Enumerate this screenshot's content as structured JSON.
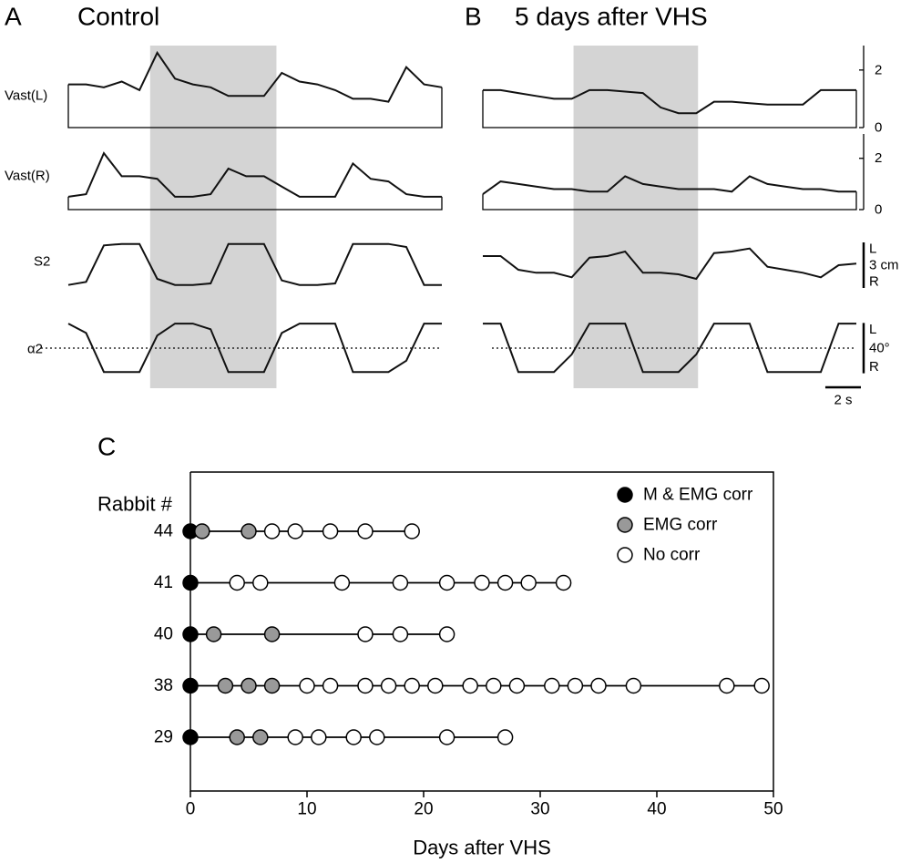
{
  "chart_data": [
    {
      "type": "traces",
      "panel": "A",
      "title": "Control",
      "x": [
        0,
        1,
        2,
        3,
        4,
        5,
        6,
        7,
        8,
        9,
        10,
        11,
        12,
        13,
        14,
        15,
        16,
        17,
        18,
        19,
        20,
        21
      ],
      "xlim": [
        0,
        21
      ],
      "shade": [
        4.6,
        11.7
      ],
      "series": [
        {
          "name": "Vast(L)",
          "color": "#111111",
          "ylim": [
            0,
            2.85
          ],
          "values": [
            1.5,
            1.5,
            1.4,
            1.6,
            1.3,
            2.6,
            1.7,
            1.5,
            1.4,
            1.1,
            1.1,
            1.1,
            1.9,
            1.6,
            1.5,
            1.3,
            1.0,
            1.0,
            0.9,
            2.1,
            1.5,
            1.4
          ]
        },
        {
          "name": "Vast(R)",
          "color": "#111111",
          "ylim": [
            0,
            2.95
          ],
          "values": [
            0.5,
            0.6,
            2.2,
            1.3,
            1.3,
            1.2,
            0.5,
            0.5,
            0.6,
            1.6,
            1.3,
            1.3,
            0.9,
            0.5,
            0.5,
            0.5,
            1.8,
            1.2,
            1.1,
            0.6,
            0.5,
            0.5
          ]
        },
        {
          "name": "S2",
          "color": "#111111",
          "ylim": [
            -1.5,
            1.5
          ],
          "values": [
            -1.3,
            -1.1,
            1.3,
            1.4,
            1.4,
            -0.9,
            -1.3,
            -1.3,
            -1.2,
            1.4,
            1.4,
            1.4,
            -1.0,
            -1.3,
            -1.3,
            -1.2,
            1.4,
            1.4,
            1.4,
            1.2,
            -1.3,
            -1.3
          ]
        },
        {
          "name": "α2",
          "color": "#111111",
          "ylim": [
            -21,
            21
          ],
          "refline": 0,
          "values": [
            19.5,
            12,
            -19,
            -19,
            -19,
            10,
            19.5,
            19.5,
            15,
            -19,
            -19,
            -19,
            12,
            19.5,
            19.5,
            19.5,
            -19,
            -19,
            -19,
            -10,
            19.5,
            19.5
          ]
        }
      ]
    },
    {
      "type": "traces",
      "panel": "B",
      "title": "5 days after VHS",
      "x": [
        0,
        1,
        2,
        3,
        4,
        5,
        6,
        7,
        8,
        9,
        10,
        11,
        12,
        13,
        14,
        15,
        16,
        17,
        18,
        19,
        20,
        21
      ],
      "xlim": [
        0,
        21
      ],
      "shade": [
        5.1,
        12.1
      ],
      "xscale": {
        "value": 2,
        "label": "2 s"
      },
      "series": [
        {
          "color": "#111111",
          "ylim": [
            0,
            2.85
          ],
          "yticks": [
            0,
            2
          ],
          "values": [
            1.3,
            1.3,
            1.2,
            1.1,
            1.0,
            1.0,
            1.3,
            1.3,
            1.25,
            1.2,
            0.7,
            0.5,
            0.5,
            0.9,
            0.9,
            0.85,
            0.8,
            0.8,
            0.8,
            1.3,
            1.3,
            1.3
          ]
        },
        {
          "color": "#111111",
          "ylim": [
            0,
            2.95
          ],
          "yticks": [
            0,
            2
          ],
          "values": [
            0.6,
            1.1,
            1.0,
            0.9,
            0.8,
            0.8,
            0.7,
            0.7,
            1.3,
            1.0,
            0.9,
            0.8,
            0.8,
            0.8,
            0.7,
            1.3,
            1.0,
            0.9,
            0.8,
            0.8,
            0.7,
            0.7
          ]
        },
        {
          "color": "#111111",
          "ylim": [
            -1.5,
            1.5
          ],
          "scale": {
            "top": "L",
            "value": 3,
            "label": "3 cm",
            "bottom": "R"
          },
          "values": [
            0.6,
            0.6,
            -0.3,
            -0.5,
            -0.5,
            -0.8,
            0.5,
            0.6,
            0.9,
            -0.5,
            -0.5,
            -0.6,
            -0.9,
            0.8,
            0.9,
            1.1,
            -0.1,
            -0.3,
            -0.5,
            -0.8,
            0.0,
            0.1
          ]
        },
        {
          "color": "#111111",
          "ylim": [
            -21,
            21
          ],
          "refline": 0,
          "scale": {
            "top": "L",
            "value": 40,
            "label": "40°",
            "bottom": "R"
          },
          "values": [
            19.5,
            19.5,
            -19,
            -19,
            -19,
            -5,
            19.5,
            19.5,
            19.5,
            -19,
            -19,
            -19,
            -5,
            19.5,
            19.5,
            19.5,
            -19,
            -19,
            -19,
            -19,
            19.5,
            19.5
          ]
        }
      ]
    },
    {
      "type": "dot",
      "panel": "C",
      "xlabel": "Days after VHS",
      "ylabel": "Rabbit #",
      "categories": [
        "44",
        "41",
        "40",
        "38",
        "29"
      ],
      "xlim": [
        0,
        50
      ],
      "xticks": [
        0,
        10,
        20,
        30,
        40,
        50
      ],
      "series": [
        {
          "name": "M & EMG corr",
          "color": "#000000",
          "x": [
            0,
            0,
            0,
            0,
            0
          ],
          "y": [
            "44",
            "41",
            "40",
            "38",
            "29"
          ]
        },
        {
          "name": "EMG corr",
          "color": "#999999",
          "x": [
            1,
            5,
            2,
            7,
            3,
            5,
            7,
            4,
            6
          ],
          "y": [
            "44",
            "44",
            "40",
            "40",
            "38",
            "38",
            "38",
            "29",
            "29"
          ]
        },
        {
          "name": "No corr",
          "color": "#ffffff",
          "x": [
            7,
            9,
            12,
            15,
            19,
            4,
            6,
            13,
            18,
            22,
            25,
            27,
            29,
            32,
            15,
            18,
            22,
            10,
            12,
            15,
            17,
            19,
            21,
            24,
            26,
            28,
            31,
            33,
            35,
            38,
            46,
            49,
            9,
            11,
            14,
            16,
            22,
            27
          ],
          "y": [
            "44",
            "44",
            "44",
            "44",
            "44",
            "41",
            "41",
            "41",
            "41",
            "41",
            "41",
            "41",
            "41",
            "41",
            "40",
            "40",
            "40",
            "38",
            "38",
            "38",
            "38",
            "38",
            "38",
            "38",
            "38",
            "38",
            "38",
            "38",
            "38",
            "38",
            "38",
            "38",
            "29",
            "29",
            "29",
            "29",
            "29",
            "29"
          ]
        }
      ]
    }
  ]
}
